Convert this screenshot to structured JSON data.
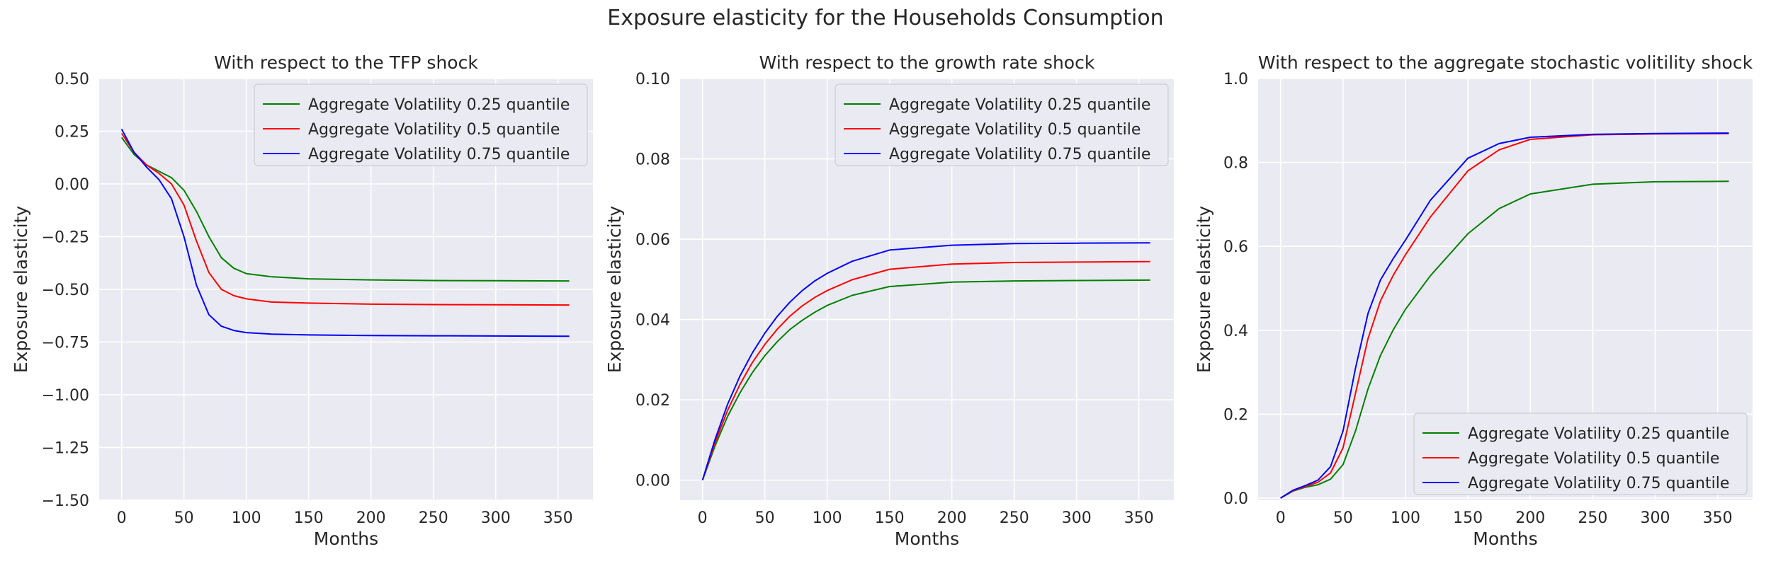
{
  "figure": {
    "title": "Exposure elasticity for the Households Consumption"
  },
  "chart_data": [
    {
      "type": "line",
      "title": "With respect to the TFP shock",
      "xlabel": "Months",
      "ylabel": "Exposure elasticity",
      "xlim": [
        -18,
        378
      ],
      "ylim": [
        -1.5,
        0.5
      ],
      "xticks": [
        0,
        50,
        100,
        150,
        200,
        250,
        300,
        350
      ],
      "yticks": [
        -1.5,
        -1.25,
        -1.0,
        -0.75,
        -0.5,
        -0.25,
        0.0,
        0.25,
        0.5
      ],
      "ytick_labels": [
        "−1.50",
        "−1.25",
        "−1.00",
        "−0.75",
        "−0.50",
        "−0.25",
        "0.00",
        "0.25",
        "0.50"
      ],
      "grid": true,
      "legend_position": "top-right",
      "series": [
        {
          "name": "Aggregate Volatility 0.25 quantile",
          "color": "#008000",
          "x": [
            0,
            10,
            20,
            30,
            40,
            50,
            60,
            70,
            80,
            90,
            100,
            120,
            150,
            200,
            250,
            300,
            359
          ],
          "y": [
            0.22,
            0.14,
            0.09,
            0.06,
            0.03,
            -0.03,
            -0.13,
            -0.25,
            -0.35,
            -0.4,
            -0.425,
            -0.44,
            -0.45,
            -0.455,
            -0.458,
            -0.459,
            -0.46
          ]
        },
        {
          "name": "Aggregate Volatility 0.5 quantile",
          "color": "#ff0000",
          "x": [
            0,
            10,
            20,
            30,
            40,
            50,
            60,
            70,
            80,
            90,
            100,
            120,
            150,
            200,
            250,
            300,
            359
          ],
          "y": [
            0.24,
            0.15,
            0.09,
            0.05,
            0.0,
            -0.1,
            -0.27,
            -0.42,
            -0.5,
            -0.53,
            -0.545,
            -0.56,
            -0.565,
            -0.57,
            -0.572,
            -0.573,
            -0.574
          ]
        },
        {
          "name": "Aggregate Volatility 0.75 quantile",
          "color": "#0000ff",
          "x": [
            0,
            10,
            20,
            30,
            40,
            50,
            60,
            70,
            80,
            90,
            100,
            120,
            150,
            200,
            250,
            300,
            359
          ],
          "y": [
            0.26,
            0.15,
            0.08,
            0.02,
            -0.07,
            -0.25,
            -0.48,
            -0.62,
            -0.675,
            -0.695,
            -0.705,
            -0.712,
            -0.716,
            -0.719,
            -0.72,
            -0.721,
            -0.722
          ]
        }
      ]
    },
    {
      "type": "line",
      "title": "With respect to the growth rate shock",
      "xlabel": "Months",
      "ylabel": "Exposure elasticity",
      "xlim": [
        -18,
        378
      ],
      "ylim": [
        -0.005,
        0.1
      ],
      "xticks": [
        0,
        50,
        100,
        150,
        200,
        250,
        300,
        350
      ],
      "yticks": [
        0.0,
        0.02,
        0.04,
        0.06,
        0.08,
        0.1
      ],
      "ytick_labels": [
        "0.00",
        "0.02",
        "0.04",
        "0.06",
        "0.08",
        "0.10"
      ],
      "grid": true,
      "legend_position": "top-right",
      "series": [
        {
          "name": "Aggregate Volatility 0.25 quantile",
          "color": "#008000",
          "x": [
            0,
            10,
            20,
            30,
            40,
            50,
            60,
            70,
            80,
            90,
            100,
            120,
            150,
            200,
            250,
            300,
            359
          ],
          "y": [
            0.0,
            0.0085,
            0.0158,
            0.0217,
            0.0268,
            0.031,
            0.0345,
            0.0375,
            0.0398,
            0.0418,
            0.0435,
            0.046,
            0.0482,
            0.0493,
            0.0496,
            0.0497,
            0.0498
          ]
        },
        {
          "name": "Aggregate Volatility 0.5 quantile",
          "color": "#ff0000",
          "x": [
            0,
            10,
            20,
            30,
            40,
            50,
            60,
            70,
            80,
            90,
            100,
            120,
            150,
            200,
            250,
            300,
            359
          ],
          "y": [
            0.0,
            0.0093,
            0.0173,
            0.0238,
            0.0293,
            0.0338,
            0.0376,
            0.0408,
            0.0434,
            0.0455,
            0.0472,
            0.0499,
            0.0525,
            0.0538,
            0.0542,
            0.0543,
            0.0544
          ]
        },
        {
          "name": "Aggregate Volatility 0.75 quantile",
          "color": "#0000ff",
          "x": [
            0,
            10,
            20,
            30,
            40,
            50,
            60,
            70,
            80,
            90,
            100,
            120,
            150,
            200,
            250,
            300,
            359
          ],
          "y": [
            0.0,
            0.0101,
            0.0188,
            0.0259,
            0.0317,
            0.0366,
            0.0408,
            0.0443,
            0.0472,
            0.0496,
            0.0515,
            0.0545,
            0.0573,
            0.0585,
            0.0589,
            0.059,
            0.0591
          ]
        }
      ]
    },
    {
      "type": "line",
      "title": "With respect to the aggregate stochastic volitility shock",
      "xlabel": "Months",
      "ylabel": "Exposure elasticity",
      "xlim": [
        -18,
        378
      ],
      "ylim": [
        -0.005,
        1.0
      ],
      "xticks": [
        0,
        50,
        100,
        150,
        200,
        250,
        300,
        350
      ],
      "yticks": [
        0.0,
        0.2,
        0.4,
        0.6,
        0.8,
        1.0
      ],
      "ytick_labels": [
        "0.0",
        "0.2",
        "0.4",
        "0.6",
        "0.8",
        "1.0"
      ],
      "grid": true,
      "legend_position": "bottom-right",
      "series": [
        {
          "name": "Aggregate Volatility 0.25 quantile",
          "color": "#008000",
          "x": [
            0,
            10,
            20,
            30,
            40,
            50,
            60,
            70,
            80,
            90,
            100,
            120,
            150,
            175,
            200,
            250,
            300,
            359
          ],
          "y": [
            0.0,
            0.017,
            0.026,
            0.032,
            0.045,
            0.08,
            0.16,
            0.26,
            0.34,
            0.4,
            0.45,
            0.53,
            0.63,
            0.69,
            0.725,
            0.748,
            0.754,
            0.755
          ]
        },
        {
          "name": "Aggregate Volatility 0.5 quantile",
          "color": "#ff0000",
          "x": [
            0,
            10,
            20,
            30,
            40,
            50,
            60,
            70,
            80,
            90,
            100,
            120,
            150,
            175,
            200,
            250,
            300,
            359
          ],
          "y": [
            0.0,
            0.018,
            0.028,
            0.038,
            0.06,
            0.12,
            0.25,
            0.38,
            0.47,
            0.53,
            0.58,
            0.67,
            0.78,
            0.83,
            0.855,
            0.866,
            0.868,
            0.869
          ]
        },
        {
          "name": "Aggregate Volatility 0.75 quantile",
          "color": "#0000ff",
          "x": [
            0,
            10,
            20,
            30,
            40,
            50,
            60,
            70,
            80,
            90,
            100,
            120,
            150,
            175,
            200,
            250,
            300,
            359
          ],
          "y": [
            0.0,
            0.019,
            0.03,
            0.043,
            0.075,
            0.16,
            0.31,
            0.44,
            0.52,
            0.57,
            0.615,
            0.71,
            0.81,
            0.845,
            0.86,
            0.867,
            0.869,
            0.87
          ]
        }
      ]
    }
  ]
}
